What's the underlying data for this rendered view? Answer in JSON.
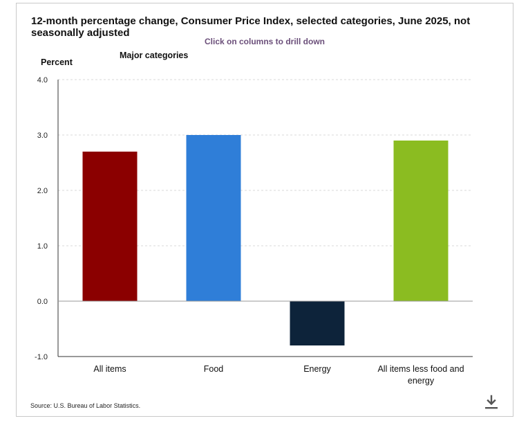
{
  "header": {
    "title": "12-month percentage change, Consumer Price Index, selected categories, June 2025, not seasonally adjusted",
    "drill_hint": "Click on columns to drill down",
    "subtitle": "Major categories"
  },
  "footer": {
    "source": "Source: U.S. Bureau of Labor Statistics.",
    "download_icon": "download-icon"
  },
  "chart_data": {
    "type": "bar",
    "title": "12-month percentage change, Consumer Price Index, selected categories, June 2025, not seasonally adjusted",
    "subtitle": "Major categories",
    "xlabel": "",
    "ylabel": "Percent",
    "ylim": [
      -1.0,
      4.0
    ],
    "yticks": [
      "4.0",
      "3.0",
      "2.0",
      "1.0",
      "0.0",
      "-1.0"
    ],
    "ytick_values": [
      4.0,
      3.0,
      2.0,
      1.0,
      0.0,
      -1.0
    ],
    "grid": true,
    "categories": [
      [
        "All items"
      ],
      [
        "Food"
      ],
      [
        "Energy"
      ],
      [
        "All items less food and",
        "energy"
      ]
    ],
    "category_names": [
      "All items",
      "Food",
      "Energy",
      "All items less food and energy"
    ],
    "values": [
      2.7,
      3.0,
      -0.8,
      2.9
    ],
    "colors": [
      "#8b0000",
      "#2f7ed8",
      "#0d233a",
      "#8bbc21"
    ]
  }
}
